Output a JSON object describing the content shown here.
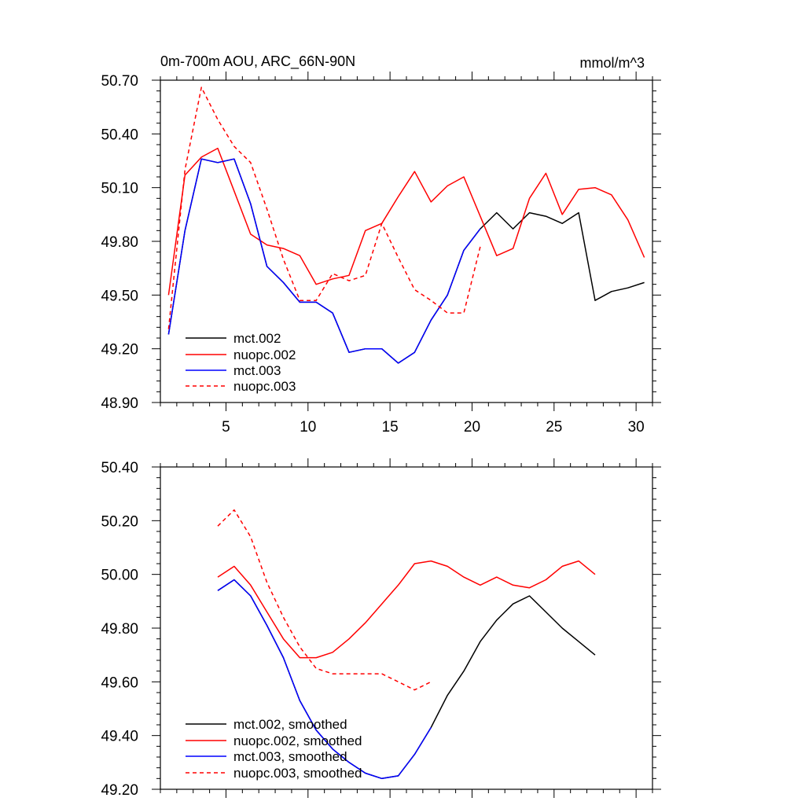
{
  "chart_data": [
    {
      "type": "line",
      "title": "0m-700m AOU, ARC_66N-90N",
      "units": "mmol/m^3",
      "xlim": [
        1,
        31
      ],
      "ylim": [
        48.9,
        50.7
      ],
      "xticks": [
        5,
        10,
        15,
        20,
        25,
        30
      ],
      "xtick_labels": [
        "5",
        "10",
        "15",
        "20",
        "25",
        "30"
      ],
      "yticks": [
        48.9,
        49.2,
        49.5,
        49.8,
        50.1,
        50.4,
        50.7
      ],
      "ytick_labels": [
        "48.90",
        "49.20",
        "49.50",
        "49.80",
        "50.10",
        "50.40",
        "50.70"
      ],
      "legend_position": "bottom-left",
      "series": [
        {
          "name": "mct.002",
          "color": "#000000",
          "dash": "solid",
          "x": [
            1.5,
            2.5,
            3.5,
            4.5,
            5.5,
            6.5,
            7.5,
            8.5,
            9.5,
            10.5,
            11.5,
            12.5,
            13.5,
            14.5,
            15.5,
            16.5,
            17.5,
            18.5,
            19.5,
            20.5,
            21.5,
            22.5,
            23.5,
            24.5,
            25.5,
            26.5,
            27.5,
            28.5,
            29.5,
            30.5
          ],
          "values": [
            49.28,
            49.86,
            50.26,
            50.24,
            50.26,
            50.01,
            49.66,
            49.57,
            49.46,
            49.46,
            49.4,
            49.18,
            49.2,
            49.2,
            49.12,
            49.18,
            49.36,
            49.5,
            49.75,
            49.87,
            49.96,
            49.87,
            49.96,
            49.94,
            49.9,
            49.96,
            49.47,
            49.52,
            49.54,
            49.57
          ]
        },
        {
          "name": "nuopc.002",
          "color": "#ff0000",
          "dash": "solid",
          "x": [
            1.5,
            2.5,
            3.5,
            4.5,
            5.5,
            6.5,
            7.5,
            8.5,
            9.5,
            10.5,
            11.5,
            12.5,
            13.5,
            14.5,
            15.5,
            16.5,
            17.5,
            18.5,
            19.5,
            20.5,
            21.5,
            22.5,
            23.5,
            24.5,
            25.5,
            26.5,
            27.5,
            28.5,
            29.5,
            30.5
          ],
          "values": [
            49.5,
            50.17,
            50.27,
            50.32,
            50.08,
            49.84,
            49.78,
            49.76,
            49.72,
            49.56,
            49.59,
            49.61,
            49.86,
            49.9,
            50.05,
            50.19,
            50.02,
            50.11,
            50.16,
            49.94,
            49.72,
            49.76,
            50.04,
            50.18,
            49.95,
            50.09,
            50.1,
            50.06,
            49.92,
            49.71
          ]
        },
        {
          "name": "mct.003",
          "color": "#0000ff",
          "dash": "solid",
          "x": [
            1.5,
            2.5,
            3.5,
            4.5,
            5.5,
            6.5,
            7.5,
            8.5,
            9.5,
            10.5,
            11.5,
            12.5,
            13.5,
            14.5,
            15.5,
            16.5,
            17.5,
            18.5,
            19.5,
            20.5
          ],
          "values": [
            49.28,
            49.86,
            50.26,
            50.24,
            50.26,
            50.01,
            49.66,
            49.57,
            49.46,
            49.46,
            49.4,
            49.18,
            49.2,
            49.2,
            49.12,
            49.18,
            49.36,
            49.5,
            49.75,
            49.87
          ]
        },
        {
          "name": "nuopc.003",
          "color": "#ff0000",
          "dash": "dashed",
          "x": [
            1.5,
            2.5,
            3.5,
            4.5,
            5.5,
            6.5,
            7.5,
            8.5,
            9.5,
            10.5,
            11.5,
            12.5,
            13.5,
            14.5,
            15.5,
            16.5,
            17.5,
            18.5,
            19.5,
            20.5
          ],
          "values": [
            49.31,
            50.2,
            50.66,
            50.48,
            50.33,
            50.24,
            49.98,
            49.7,
            49.47,
            49.47,
            49.62,
            49.58,
            49.61,
            49.9,
            49.71,
            49.53,
            49.47,
            49.4,
            49.4,
            49.77
          ]
        }
      ]
    },
    {
      "type": "line",
      "title": "",
      "xlim": [
        1,
        31
      ],
      "ylim": [
        49.2,
        50.4
      ],
      "xticks": [
        5,
        10,
        15,
        20,
        25,
        30
      ],
      "xtick_labels": [],
      "yticks": [
        49.2,
        49.4,
        49.6,
        49.8,
        50.0,
        50.2,
        50.4
      ],
      "ytick_labels": [
        "49.20",
        "49.40",
        "49.60",
        "49.80",
        "50.00",
        "50.20",
        "50.40"
      ],
      "legend_position": "bottom-left",
      "series": [
        {
          "name": "mct.002, smoothed",
          "color": "#000000",
          "dash": "solid",
          "x": [
            4.5,
            5.5,
            6.5,
            7.5,
            8.5,
            9.5,
            10.5,
            11.5,
            12.5,
            13.5,
            14.5,
            15.5,
            16.5,
            17.5,
            18.5,
            19.5,
            20.5,
            21.5,
            22.5,
            23.5,
            24.5,
            25.5,
            26.5,
            27.5
          ],
          "values": [
            49.94,
            49.98,
            49.92,
            49.81,
            49.69,
            49.53,
            49.42,
            49.35,
            49.3,
            49.26,
            49.24,
            49.25,
            49.33,
            49.43,
            49.55,
            49.64,
            49.75,
            49.83,
            49.89,
            49.92,
            49.86,
            49.8,
            49.75,
            49.7
          ]
        },
        {
          "name": "nuopc.002, smoothed",
          "color": "#ff0000",
          "dash": "solid",
          "x": [
            4.5,
            5.5,
            6.5,
            7.5,
            8.5,
            9.5,
            10.5,
            11.5,
            12.5,
            13.5,
            14.5,
            15.5,
            16.5,
            17.5,
            18.5,
            19.5,
            20.5,
            21.5,
            22.5,
            23.5,
            24.5,
            25.5,
            26.5,
            27.5
          ],
          "values": [
            49.99,
            50.03,
            49.96,
            49.86,
            49.76,
            49.69,
            49.69,
            49.71,
            49.76,
            49.82,
            49.89,
            49.96,
            50.04,
            50.05,
            50.03,
            49.99,
            49.96,
            49.99,
            49.96,
            49.95,
            49.98,
            50.03,
            50.05,
            50.0
          ]
        },
        {
          "name": "mct.003, smoothed",
          "color": "#0000ff",
          "dash": "solid",
          "x": [
            4.5,
            5.5,
            6.5,
            7.5,
            8.5,
            9.5,
            10.5,
            11.5,
            12.5,
            13.5,
            14.5,
            15.5,
            16.5,
            17.5
          ],
          "values": [
            49.94,
            49.98,
            49.92,
            49.81,
            49.69,
            49.53,
            49.42,
            49.35,
            49.3,
            49.26,
            49.24,
            49.25,
            49.33,
            49.43
          ]
        },
        {
          "name": "nuopc.003, smoothed",
          "color": "#ff0000",
          "dash": "dashed",
          "x": [
            4.5,
            5.5,
            6.5,
            7.5,
            8.5,
            9.5,
            10.5,
            11.5,
            12.5,
            13.5,
            14.5,
            15.5,
            16.5,
            17.5
          ],
          "values": [
            50.18,
            50.24,
            50.14,
            49.97,
            49.84,
            49.73,
            49.65,
            49.63,
            49.63,
            49.63,
            49.63,
            49.6,
            49.57,
            49.6
          ]
        }
      ]
    }
  ]
}
